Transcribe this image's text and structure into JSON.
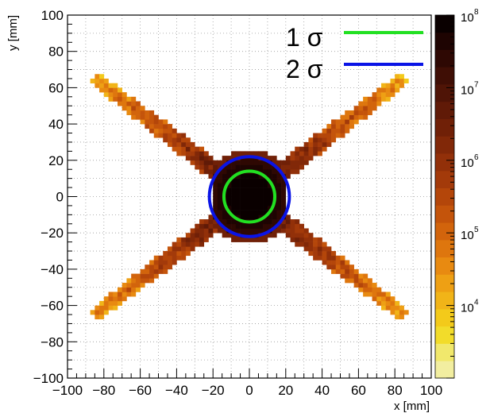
{
  "chart_data": {
    "type": "heatmap",
    "xlabel": "x [mm]",
    "ylabel": "y [mm]",
    "xlim": [
      -100,
      100
    ],
    "ylim": [
      -100,
      100
    ],
    "x_ticks": [
      "−100",
      "−80",
      "−60",
      "−40",
      "−20",
      "0",
      "20",
      "40",
      "60",
      "80",
      "100"
    ],
    "y_ticks": [
      "−100",
      "−80",
      "−60",
      "−40",
      "−20",
      "0",
      "20",
      "40",
      "60",
      "80",
      "100"
    ],
    "grid": true,
    "colorbar": {
      "scale": "log",
      "range": [
        1000,
        100000000
      ],
      "tick_labels": [
        {
          "base": "10",
          "exp": "4",
          "value": 10000
        },
        {
          "base": "10",
          "exp": "5",
          "value": 100000
        },
        {
          "base": "10",
          "exp": "6",
          "value": 1000000
        },
        {
          "base": "10",
          "exp": "7",
          "value": 10000000
        },
        {
          "base": "10",
          "exp": "8",
          "value": 100000000
        }
      ],
      "palette": [
        "#f2eea0",
        "#f1e86c",
        "#f2dc2a",
        "#f3ca1a",
        "#f1b418",
        "#eea014",
        "#e88a11",
        "#de760e",
        "#d2640c",
        "#c4540b",
        "#b4460a",
        "#a33a0a",
        "#923009",
        "#812808",
        "#702007",
        "#601a07",
        "#4f1406",
        "#3f0e05",
        "#2e0803",
        "#1e0402",
        "#0a0000"
      ]
    },
    "center_blob": {
      "x": 0,
      "y": 0,
      "radius_mm": 22,
      "description_free": true
    },
    "arms": [
      {
        "from": [
          0,
          0
        ],
        "to": [
          86,
          66
        ]
      },
      {
        "from": [
          0,
          0
        ],
        "to": [
          -86,
          66
        ]
      },
      {
        "from": [
          0,
          0
        ],
        "to": [
          86,
          -66
        ]
      },
      {
        "from": [
          0,
          0
        ],
        "to": [
          -86,
          -66
        ]
      }
    ],
    "series": [
      {
        "name": "1 σ",
        "type": "circle",
        "center": [
          0,
          0
        ],
        "radius": 14,
        "color": "#22e022"
      },
      {
        "name": "2 σ",
        "type": "circle",
        "center": [
          0,
          0
        ],
        "radius": 22,
        "color": "#0a14e6"
      }
    ]
  }
}
